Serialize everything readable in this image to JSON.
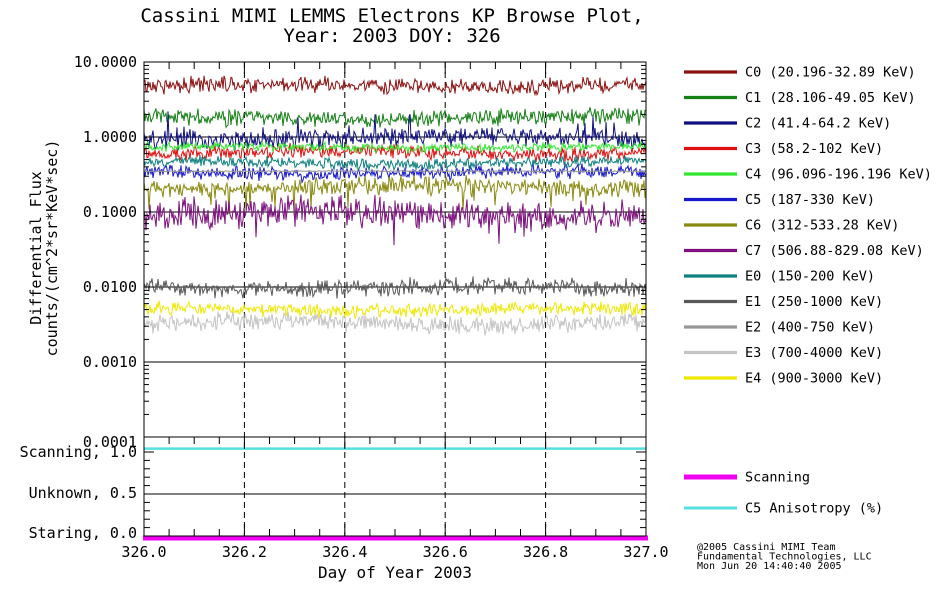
{
  "chart_data": {
    "type": "line",
    "title": [
      "Cassini MIMI LEMMS Electrons KP Browse Plot,",
      "Year: 2003 DOY: 326"
    ],
    "axes": {
      "x": {
        "label": "Day of Year 2003",
        "range": [
          326.0,
          327.0
        ],
        "tick_values": [
          326.0,
          326.2,
          326.4,
          326.6,
          326.8,
          327.0
        ],
        "tick_labels": [
          "326.0",
          "326.2",
          "326.4",
          "326.6",
          "326.8",
          "327.0"
        ],
        "minor_tick_step": 0.05,
        "grid": "dashed-vertical"
      },
      "y_flux": {
        "label_lines": [
          "Differential Flux",
          "counts/(cm^2*sr*KeV*sec)"
        ],
        "scale": "log",
        "range": [
          0.0001,
          10
        ],
        "tick_values": [
          10,
          1,
          0.1,
          0.01,
          0.001,
          0.0001
        ],
        "tick_labels": [
          "10.0000",
          "1.0000",
          "0.1000",
          "0.0100",
          "0.0010",
          "0.0001"
        ],
        "grid": "solid-horizontal-decades"
      },
      "y_mode": {
        "range": [
          0.0,
          1.2
        ],
        "tick_values": [
          1.0,
          0.5,
          0.0
        ],
        "tick_labels": [
          "Scanning, 1.0",
          "Unknown, 0.5",
          "Staring, 0.0"
        ],
        "grid_value": 0.5
      }
    },
    "series": [
      {
        "id": "C0",
        "label": "C0 (20.196-32.89 KeV)",
        "color": "#8b1111",
        "mean_flux": 4.8,
        "noise_dex": 0.085,
        "spike": ""
      },
      {
        "id": "C1",
        "label": "C1 (28.106-49.05 KeV)",
        "color": "#168016",
        "mean_flux": 1.8,
        "noise_dex": 0.09,
        "spike": ""
      },
      {
        "id": "C2",
        "label": "C2 (41.4-64.2 KeV)",
        "color": "#101080",
        "mean_flux": 0.97,
        "noise_dex": 0.105,
        "spike": "up"
      },
      {
        "id": "C3",
        "label": "C3 (58.2-102 KeV)",
        "color": "#e01010",
        "mean_flux": 0.62,
        "noise_dex": 0.075,
        "spike": ""
      },
      {
        "id": "C4",
        "label": "C4 (96.096-196.196 KeV)",
        "color": "#30e830",
        "mean_flux": 0.73,
        "noise_dex": 0.05,
        "spike": ""
      },
      {
        "id": "C5",
        "label": "C5 (187-330 KeV)",
        "color": "#1818cc",
        "mean_flux": 0.335,
        "noise_dex": 0.075,
        "spike": ""
      },
      {
        "id": "C6",
        "label": "C6 (312-533.28 KeV)",
        "color": "#8a8a10",
        "mean_flux": 0.215,
        "noise_dex": 0.095,
        "spike": "down"
      },
      {
        "id": "C7",
        "label": "C7 (506.88-829.08 KeV)",
        "color": "#7d107d",
        "mean_flux": 0.095,
        "noise_dex": 0.16,
        "spike": "down"
      },
      {
        "id": "E0",
        "label": "E0 (150-200 KeV)",
        "color": "#108080",
        "mean_flux": 0.455,
        "noise_dex": 0.06,
        "spike": ""
      },
      {
        "id": "E1",
        "label": "E1 (250-1000 KeV)",
        "color": "#585858",
        "mean_flux": 0.0098,
        "noise_dex": 0.095,
        "spike": ""
      },
      {
        "id": "E2",
        "label": "E2 (400-750 KeV)",
        "color": "#989898",
        "mean_flux": 0.35,
        "noise_dex": 0.006,
        "spike": ""
      },
      {
        "id": "E3",
        "label": "E3 (700-4000 KeV)",
        "color": "#c4c4c4",
        "mean_flux": 0.0033,
        "noise_dex": 0.1,
        "spike": ""
      },
      {
        "id": "E4",
        "label": "E4 (900-3000 KeV)",
        "color": "#f0e800",
        "mean_flux": 0.005,
        "noise_dex": 0.07,
        "spike": ""
      }
    ],
    "mode_series": [
      {
        "id": "scan_state",
        "label": "Scanning",
        "color": "#f000f0",
        "value": 0.0,
        "thickness": 5
      },
      {
        "id": "c5_anisotropy",
        "label": "C5 Anisotropy (%)",
        "color": "#55e0e0",
        "value": 1.04,
        "thickness": 2.5
      }
    ],
    "legend_position": "right"
  },
  "credit": {
    "lines": [
      "@2005 Cassini MIMI Team",
      "Fundamental Technologies, LLC",
      "Mon Jun 20 14:40:40 2005"
    ]
  }
}
